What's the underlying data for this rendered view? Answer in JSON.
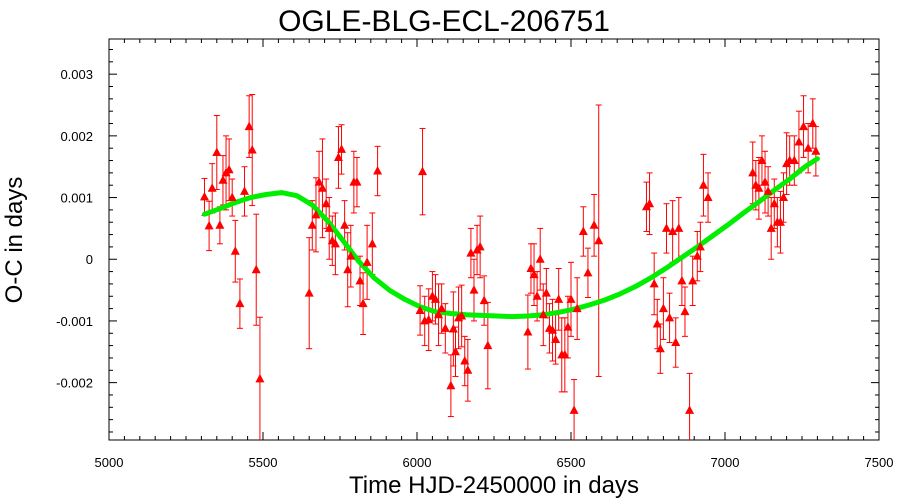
{
  "chart_data": {
    "type": "scatter",
    "title": "OGLE-BLG-ECL-206751",
    "xlabel": "Time HJD-2450000 in days",
    "ylabel": "O-C in days",
    "xlim": [
      5000,
      7500
    ],
    "ylim": [
      -0.00293,
      0.00357
    ],
    "xticks": [
      5000,
      5500,
      6000,
      6500,
      7000,
      7500
    ],
    "xtick_labels": [
      "5000",
      "5500",
      "6000",
      "6500",
      "7000",
      "7500"
    ],
    "yticks": [
      -0.002,
      -0.001,
      0,
      0.001,
      0.002,
      0.003
    ],
    "ytick_labels": [
      "-0.002",
      "-0.001",
      "0",
      "0.001",
      "0.002",
      "0.003"
    ],
    "grid": false,
    "legend": "none",
    "colors": {
      "points": "#ff0000",
      "fit": "#00ee00"
    },
    "series": [
      {
        "type": "scatter-errorbar",
        "points": [
          {
            "x": 5310,
            "y": 0.00101,
            "err": 0.0003
          },
          {
            "x": 5325,
            "y": 0.00054,
            "err": 0.0004
          },
          {
            "x": 5335,
            "y": 0.00115,
            "err": 0.0004
          },
          {
            "x": 5350,
            "y": 0.00173,
            "err": 0.0006
          },
          {
            "x": 5360,
            "y": 0.00055,
            "err": 0.0003
          },
          {
            "x": 5370,
            "y": 0.00128,
            "err": 0.0004
          },
          {
            "x": 5380,
            "y": 0.0014,
            "err": 0.0006
          },
          {
            "x": 5390,
            "y": 0.00145,
            "err": 0.0005
          },
          {
            "x": 5400,
            "y": 0.001,
            "err": 0.0003
          },
          {
            "x": 5410,
            "y": 0.00013,
            "err": 0.0005
          },
          {
            "x": 5425,
            "y": -0.00072,
            "err": 0.0004
          },
          {
            "x": 5440,
            "y": 0.0011,
            "err": 0.0004
          },
          {
            "x": 5455,
            "y": 0.00215,
            "err": 0.0005
          },
          {
            "x": 5465,
            "y": 0.00177,
            "err": 0.0009
          },
          {
            "x": 5478,
            "y": -0.00017,
            "err": 0.0009
          },
          {
            "x": 5490,
            "y": -0.00194,
            "err": 0.001
          },
          {
            "x": 5650,
            "y": -0.00055,
            "err": 0.0009
          },
          {
            "x": 5660,
            "y": 0.00055,
            "err": 0.0004
          },
          {
            "x": 5672,
            "y": 0.00072,
            "err": 0.0006
          },
          {
            "x": 5682,
            "y": 0.00125,
            "err": 0.0005
          },
          {
            "x": 5693,
            "y": 0.00115,
            "err": 0.0008
          },
          {
            "x": 5705,
            "y": 0.0009,
            "err": 0.0004
          },
          {
            "x": 5715,
            "y": 0.0005,
            "err": 0.0005
          },
          {
            "x": 5725,
            "y": 0.0003,
            "err": 0.0004
          },
          {
            "x": 5735,
            "y": 0.00025,
            "err": 0.0005
          },
          {
            "x": 5745,
            "y": 0.00165,
            "err": 0.0005
          },
          {
            "x": 5755,
            "y": 0.00178,
            "err": 0.0004
          },
          {
            "x": 5765,
            "y": 0.00055,
            "err": 0.0004
          },
          {
            "x": 5775,
            "y": -0.00017,
            "err": 0.0006
          },
          {
            "x": 5785,
            "y": 5e-05,
            "err": 0.0005
          },
          {
            "x": 5795,
            "y": 0.00125,
            "err": 0.0005
          },
          {
            "x": 5805,
            "y": 0.00125,
            "err": 0.0004
          },
          {
            "x": 5815,
            "y": -0.00035,
            "err": 0.0004
          },
          {
            "x": 5825,
            "y": -0.00072,
            "err": 0.0005
          },
          {
            "x": 5838,
            "y": -5e-05,
            "err": 0.0006
          },
          {
            "x": 5855,
            "y": 0.00025,
            "err": 0.0005
          },
          {
            "x": 5872,
            "y": 0.00143,
            "err": 0.0004
          },
          {
            "x": 6010,
            "y": -0.00083,
            "err": 0.0004
          },
          {
            "x": 6018,
            "y": 0.00142,
            "err": 0.0007
          },
          {
            "x": 6025,
            "y": -0.001,
            "err": 0.0004
          },
          {
            "x": 6038,
            "y": -0.00098,
            "err": 0.0005
          },
          {
            "x": 6050,
            "y": -0.0006,
            "err": 0.0004
          },
          {
            "x": 6060,
            "y": -0.00065,
            "err": 0.0004
          },
          {
            "x": 6070,
            "y": -0.0009,
            "err": 0.0005
          },
          {
            "x": 6080,
            "y": -0.0008,
            "err": 0.0004
          },
          {
            "x": 6092,
            "y": -0.00112,
            "err": 0.0004
          },
          {
            "x": 6110,
            "y": -0.00205,
            "err": 0.0005
          },
          {
            "x": 6118,
            "y": -0.00113,
            "err": 0.0006
          },
          {
            "x": 6125,
            "y": -0.0015,
            "err": 0.0004
          },
          {
            "x": 6135,
            "y": -0.00095,
            "err": 0.0005
          },
          {
            "x": 6145,
            "y": -0.00092,
            "err": 0.0005
          },
          {
            "x": 6155,
            "y": -0.00165,
            "err": 0.0004
          },
          {
            "x": 6165,
            "y": -0.0018,
            "err": 0.0005
          },
          {
            "x": 6175,
            "y": 0.0001,
            "err": 0.0004
          },
          {
            "x": 6185,
            "y": -0.0005,
            "err": 0.0005
          },
          {
            "x": 6195,
            "y": 0.00015,
            "err": 0.0004
          },
          {
            "x": 6205,
            "y": 0.0002,
            "err": 0.0005
          },
          {
            "x": 6218,
            "y": -0.00067,
            "err": 0.0004
          },
          {
            "x": 6230,
            "y": -0.0014,
            "err": 0.0007
          },
          {
            "x": 6360,
            "y": -0.00118,
            "err": 0.0006
          },
          {
            "x": 6370,
            "y": -0.00015,
            "err": 0.0004
          },
          {
            "x": 6380,
            "y": -0.00025,
            "err": 0.0005
          },
          {
            "x": 6390,
            "y": -0.0006,
            "err": 0.0004
          },
          {
            "x": 6400,
            "y": 0.0,
            "err": 0.0005
          },
          {
            "x": 6410,
            "y": -0.0009,
            "err": 0.0005
          },
          {
            "x": 6420,
            "y": -0.00055,
            "err": 0.0004
          },
          {
            "x": 6430,
            "y": -0.00112,
            "err": 0.0004
          },
          {
            "x": 6440,
            "y": -0.00115,
            "err": 0.0005
          },
          {
            "x": 6450,
            "y": -0.0013,
            "err": 0.0004
          },
          {
            "x": 6460,
            "y": -0.00065,
            "err": 0.0005
          },
          {
            "x": 6470,
            "y": -0.00155,
            "err": 0.0006
          },
          {
            "x": 6480,
            "y": -0.00155,
            "err": 0.0006
          },
          {
            "x": 6490,
            "y": -0.0011,
            "err": 0.0005
          },
          {
            "x": 6500,
            "y": -0.00065,
            "err": 0.0006
          },
          {
            "x": 6510,
            "y": -0.00245,
            "err": 0.0005
          },
          {
            "x": 6520,
            "y": -0.0008,
            "err": 0.0005
          },
          {
            "x": 6540,
            "y": 0.00045,
            "err": 0.0004
          },
          {
            "x": 6555,
            "y": -0.00022,
            "err": 0.0004
          },
          {
            "x": 6575,
            "y": 0.00055,
            "err": 0.0005
          },
          {
            "x": 6590,
            "y": 0.0003,
            "err": 0.0022
          },
          {
            "x": 6745,
            "y": 0.00085,
            "err": 0.0004
          },
          {
            "x": 6755,
            "y": 0.0009,
            "err": 0.0005
          },
          {
            "x": 6770,
            "y": -0.0004,
            "err": 0.0005
          },
          {
            "x": 6780,
            "y": -0.00105,
            "err": 0.0004
          },
          {
            "x": 6790,
            "y": -0.00145,
            "err": 0.0004
          },
          {
            "x": 6800,
            "y": -0.0008,
            "err": 0.0005
          },
          {
            "x": 6810,
            "y": 0.0005,
            "err": 0.0004
          },
          {
            "x": 6820,
            "y": -0.00095,
            "err": 0.0004
          },
          {
            "x": 6830,
            "y": 0.00045,
            "err": 0.0005
          },
          {
            "x": 6840,
            "y": -0.00135,
            "err": 0.0004
          },
          {
            "x": 6850,
            "y": 0.0005,
            "err": 0.0005
          },
          {
            "x": 6860,
            "y": -0.00035,
            "err": 0.0004
          },
          {
            "x": 6870,
            "y": -0.00085,
            "err": 0.0004
          },
          {
            "x": 6885,
            "y": -0.00245,
            "err": 0.0006
          },
          {
            "x": 6895,
            "y": -0.00035,
            "err": 0.0004
          },
          {
            "x": 6910,
            "y": 5e-05,
            "err": 0.0004
          },
          {
            "x": 6920,
            "y": 0.0002,
            "err": 0.0004
          },
          {
            "x": 6930,
            "y": 0.0012,
            "err": 0.0005
          },
          {
            "x": 6945,
            "y": 0.001,
            "err": 0.0004
          },
          {
            "x": 7090,
            "y": 0.0014,
            "err": 0.0005
          },
          {
            "x": 7100,
            "y": 0.0012,
            "err": 0.0004
          },
          {
            "x": 7110,
            "y": 0.00115,
            "err": 0.0005
          },
          {
            "x": 7120,
            "y": 0.0016,
            "err": 0.0004
          },
          {
            "x": 7130,
            "y": 0.00125,
            "err": 0.0005
          },
          {
            "x": 7140,
            "y": 0.0011,
            "err": 0.0004
          },
          {
            "x": 7150,
            "y": 0.0005,
            "err": 0.0005
          },
          {
            "x": 7160,
            "y": 0.0009,
            "err": 0.0004
          },
          {
            "x": 7170,
            "y": 0.0006,
            "err": 0.0004
          },
          {
            "x": 7180,
            "y": 0.0006,
            "err": 0.0005
          },
          {
            "x": 7190,
            "y": 0.001,
            "err": 0.0004
          },
          {
            "x": 7200,
            "y": 0.00155,
            "err": 0.0005
          },
          {
            "x": 7210,
            "y": 0.0016,
            "err": 0.0004
          },
          {
            "x": 7225,
            "y": 0.0016,
            "err": 0.0004
          },
          {
            "x": 7240,
            "y": 0.0019,
            "err": 0.0005
          },
          {
            "x": 7255,
            "y": 0.00215,
            "err": 0.0005
          },
          {
            "x": 7270,
            "y": 0.0018,
            "err": 0.0004
          },
          {
            "x": 7285,
            "y": 0.0022,
            "err": 0.0004
          },
          {
            "x": 7295,
            "y": 0.00175,
            "err": 0.0004
          }
        ]
      },
      {
        "type": "line",
        "x": [
          5310,
          5360,
          5410,
          5460,
          5510,
          5560,
          5610,
          5660,
          5710,
          5760,
          5810,
          5860,
          5910,
          5960,
          6010,
          6060,
          6110,
          6160,
          6210,
          6260,
          6310,
          6360,
          6410,
          6460,
          6510,
          6560,
          6610,
          6660,
          6710,
          6760,
          6810,
          6860,
          6910,
          6960,
          7010,
          7060,
          7110,
          7160,
          7210,
          7260,
          7300
        ],
        "y": [
          0.00073,
          0.00082,
          0.00092,
          0.001,
          0.00105,
          0.00108,
          0.00103,
          0.00088,
          0.00062,
          0.0003,
          -3e-05,
          -0.0003,
          -0.0005,
          -0.00065,
          -0.00077,
          -0.00085,
          -0.00088,
          -0.0009,
          -0.00091,
          -0.00092,
          -0.00093,
          -0.00092,
          -0.0009,
          -0.00086,
          -0.00081,
          -0.00074,
          -0.00066,
          -0.00056,
          -0.00044,
          -0.0003,
          -0.00014,
          3e-05,
          0.0002,
          0.00038,
          0.00056,
          0.00075,
          0.00093,
          0.00112,
          0.0013,
          0.0015,
          0.00163
        ]
      }
    ]
  }
}
